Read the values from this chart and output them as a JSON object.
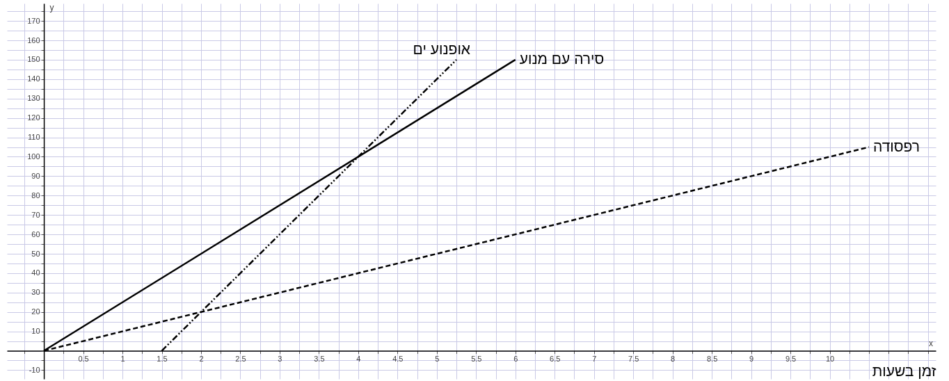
{
  "chart_data": {
    "type": "line",
    "xlabel": "זמן בשעות",
    "ylabel": "y",
    "annotations": [
      "x"
    ],
    "xlim": [
      -0.47,
      11.35
    ],
    "ylim": [
      -14.5,
      179
    ],
    "xticks": [
      {
        "value": -0.25,
        "label": null
      },
      {
        "value": 0,
        "label": null
      },
      {
        "value": 0.25,
        "label": null
      },
      0.5,
      {
        "value": 0.75,
        "label": null
      },
      1,
      {
        "value": 1.25,
        "label": null
      },
      1.5,
      {
        "value": 1.75,
        "label": null
      },
      2,
      {
        "value": 2.25,
        "label": null
      },
      2.5,
      {
        "value": 2.75,
        "label": null
      },
      3,
      {
        "value": 3.25,
        "label": null
      },
      3.5,
      {
        "value": 3.75,
        "label": null
      },
      4,
      {
        "value": 4.25,
        "label": null
      },
      4.5,
      {
        "value": 4.75,
        "label": null
      },
      5,
      {
        "value": 5.25,
        "label": null
      },
      5.5,
      {
        "value": 5.75,
        "label": null
      },
      6,
      {
        "value": 6.25,
        "label": null
      },
      6.5,
      {
        "value": 6.75,
        "label": null
      },
      7,
      {
        "value": 7.25,
        "label": null
      },
      7.5,
      {
        "value": 7.75,
        "label": null
      },
      8,
      {
        "value": 8.25,
        "label": null
      },
      8.5,
      {
        "value": 8.75,
        "label": null
      },
      9,
      {
        "value": 9.25,
        "label": null
      },
      9.5,
      {
        "value": 9.75,
        "label": null
      },
      10,
      {
        "value": 10.25,
        "label": null
      },
      {
        "value": 10.5,
        "label": null
      },
      {
        "value": 10.75,
        "label": null
      },
      {
        "value": 11,
        "label": null
      },
      {
        "value": 11.25,
        "label": null
      }
    ],
    "yticks": [
      -10,
      {
        "value": -5,
        "label": null
      },
      {
        "value": 0,
        "label": null
      },
      {
        "value": 5,
        "label": null
      },
      10,
      {
        "value": 15,
        "label": null
      },
      20,
      {
        "value": 25,
        "label": null
      },
      30,
      {
        "value": 35,
        "label": null
      },
      40,
      {
        "value": 45,
        "label": null
      },
      50,
      {
        "value": 55,
        "label": null
      },
      60,
      {
        "value": 65,
        "label": null
      },
      70,
      {
        "value": 75,
        "label": null
      },
      80,
      {
        "value": 85,
        "label": null
      },
      90,
      {
        "value": 95,
        "label": null
      },
      100,
      {
        "value": 105,
        "label": null
      },
      110,
      {
        "value": 115,
        "label": null
      },
      120,
      {
        "value": 125,
        "label": null
      },
      130,
      {
        "value": 135,
        "label": null
      },
      140,
      {
        "value": 145,
        "label": null
      },
      150,
      {
        "value": 155,
        "label": null
      },
      160,
      {
        "value": 165,
        "label": null
      },
      170,
      {
        "value": 175,
        "label": null
      }
    ],
    "grid": true,
    "marker": "none",
    "series": [
      {
        "name": "סירה עם מנוע",
        "color": "#000000",
        "line_style": "solid",
        "x": [
          0,
          6
        ],
        "values": [
          0,
          150
        ]
      },
      {
        "name": "רפסודה",
        "color": "#000000",
        "line_style": "dashed",
        "x": [
          0,
          10.5
        ],
        "values": [
          0,
          105
        ]
      },
      {
        "name": "אופנוע ים",
        "color": "#000000",
        "line_style": "dotted",
        "x": [
          1.5,
          5.25
        ],
        "values": [
          0,
          150
        ]
      }
    ]
  }
}
